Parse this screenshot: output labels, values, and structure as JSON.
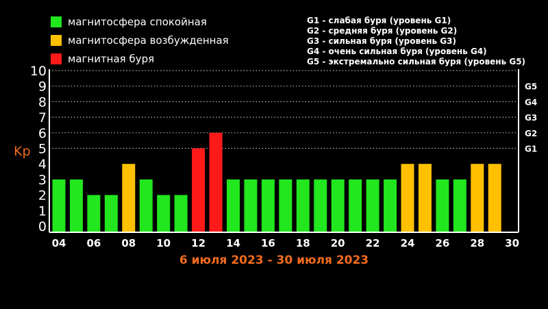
{
  "legend": {
    "items": [
      {
        "label": "магнитосфера спокойная",
        "color": "#22e61e"
      },
      {
        "label": "магнитосфера возбужденная",
        "color": "#ffc000"
      },
      {
        "label": "магнитная буря",
        "color": "#ff1a1a"
      }
    ]
  },
  "storm_levels": [
    "G1 - слабая буря (уровень G1)",
    "G2 - средняя буря (уровень G2)",
    "G3 - сильная буря (уровень G3)",
    "G4 - очень сильная буря (уровень G4)",
    "G5 - экстремально сильная буря (уровень G5)"
  ],
  "date_range": "6 июля 2023 - 30 июля 2023",
  "colors": {
    "ylabel": "#f26b1d",
    "axis": "#ffffff",
    "grid": "#bbbbbb"
  },
  "chart_data": {
    "type": "bar",
    "ylabel": "Kp",
    "ylim": [
      0,
      10
    ],
    "yticks": [
      "0",
      "1",
      "2",
      "3",
      "4",
      "5",
      "6",
      "7",
      "8",
      "9",
      "10"
    ],
    "g_levels": [
      {
        "label": "G1",
        "kp": 5
      },
      {
        "label": "G2",
        "kp": 6
      },
      {
        "label": "G3",
        "kp": 7
      },
      {
        "label": "G4",
        "kp": 8
      },
      {
        "label": "G5",
        "kp": 9
      }
    ],
    "xticks": [
      "04",
      "06",
      "08",
      "10",
      "12",
      "14",
      "16",
      "18",
      "20",
      "22",
      "24",
      "26",
      "28",
      "30"
    ],
    "categories": [
      "4",
      "5",
      "6",
      "7",
      "8",
      "9",
      "10",
      "11",
      "12",
      "13",
      "14",
      "15",
      "16",
      "17",
      "18",
      "19",
      "20",
      "21",
      "22",
      "23",
      "24",
      "25",
      "26",
      "27",
      "28",
      "29"
    ],
    "values": [
      3,
      3,
      2,
      2,
      4,
      3,
      2,
      2,
      5,
      6,
      3,
      3,
      3,
      3,
      3,
      3,
      3,
      3,
      3,
      3,
      4,
      4,
      3,
      3,
      4,
      4
    ],
    "levels": [
      "quiet",
      "quiet",
      "quiet",
      "quiet",
      "disturbed",
      "quiet",
      "quiet",
      "quiet",
      "storm",
      "storm",
      "quiet",
      "quiet",
      "quiet",
      "quiet",
      "quiet",
      "quiet",
      "quiet",
      "quiet",
      "quiet",
      "quiet",
      "disturbed",
      "disturbed",
      "quiet",
      "quiet",
      "disturbed",
      "disturbed"
    ],
    "level_colors": {
      "quiet": "#22e61e",
      "disturbed": "#ffc000",
      "storm": "#ff1a1a"
    }
  }
}
